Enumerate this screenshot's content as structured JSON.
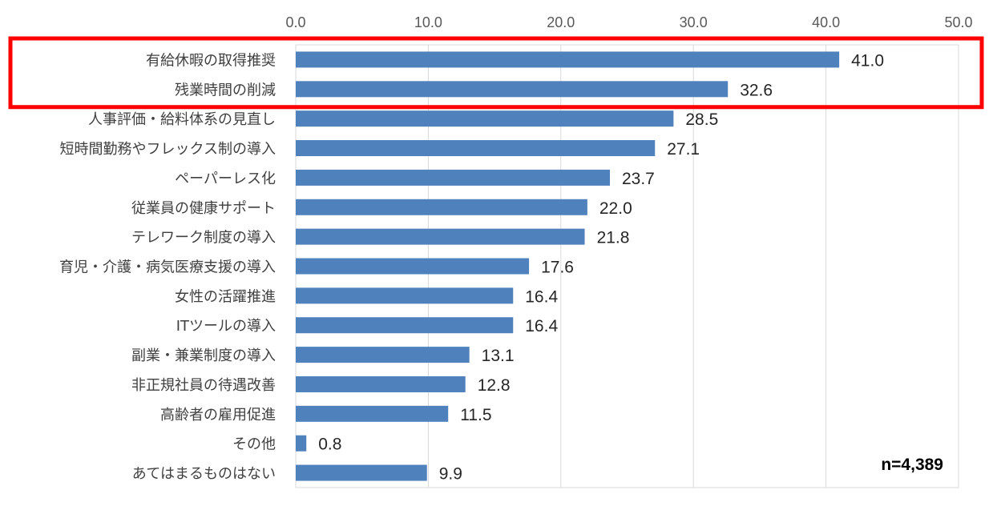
{
  "chart_data": {
    "type": "bar",
    "orientation": "horizontal",
    "categories": [
      "有給休暇の取得推奨",
      "残業時間の削減",
      "人事評価・給料体系の見直し",
      "短時間勤務やフレックス制の導入",
      "ペーパーレス化",
      "従業員の健康サポート",
      "テレワーク制度の導入",
      "育児・介護・病気医療支援の導入",
      "女性の活躍推進",
      "ITツールの導入",
      "副業・兼業制度の導入",
      "非正規社員の待遇改善",
      "高齢者の雇用促進",
      "その他",
      "あてはまるものはない"
    ],
    "values": [
      41.0,
      32.6,
      28.5,
      27.1,
      23.7,
      22.0,
      21.8,
      17.6,
      16.4,
      16.4,
      13.1,
      12.8,
      11.5,
      0.8,
      9.9
    ],
    "value_labels": [
      "41.0",
      "32.6",
      "28.5",
      "27.1",
      "23.7",
      "22.0",
      "21.8",
      "17.6",
      "16.4",
      "16.4",
      "13.1",
      "12.8",
      "11.5",
      "0.8",
      "9.9"
    ],
    "x_ticks": [
      "0.0",
      "10.0",
      "20.0",
      "30.0",
      "40.0",
      "50.0"
    ],
    "xlim": [
      0,
      50
    ],
    "x_axis_position": "top",
    "grid": true,
    "annotation": "n=4,389",
    "highlighted_categories": [
      "有給休暇の取得推奨",
      "残業時間の削減"
    ],
    "colors": {
      "bar": "#4F81BD",
      "grid": "#D9D9D9",
      "highlight_box": "#FF0000"
    }
  }
}
